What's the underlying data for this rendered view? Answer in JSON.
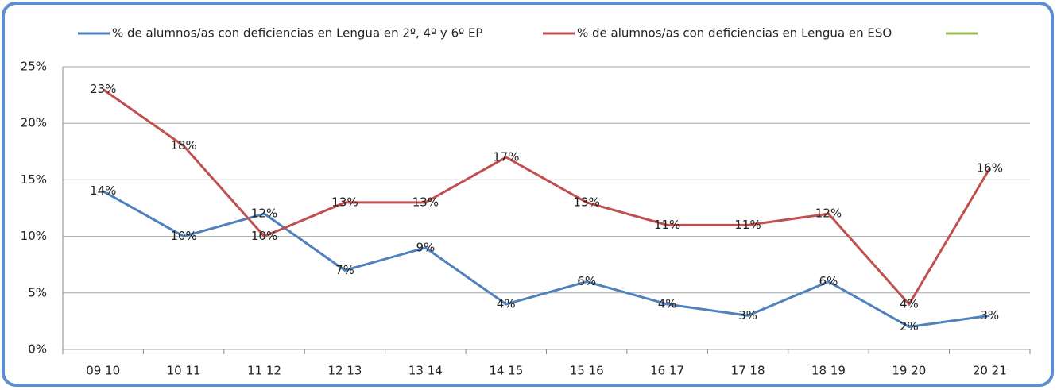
{
  "chart_data": {
    "type": "line",
    "categories": [
      "09 10",
      "10 11",
      "11 12",
      "12 13",
      "13 14",
      "14 15",
      "15 16",
      "16 17",
      "17 18",
      "18 19",
      "19 20",
      "20 21"
    ],
    "series": [
      {
        "name": "% de alumnos/as con deficiencias en Lengua  en 2º, 4º y 6º EP",
        "color": "#4f81bd",
        "values": [
          14,
          10,
          12,
          7,
          9,
          4,
          6,
          4,
          3,
          6,
          2,
          3
        ],
        "value_labels": [
          "14%",
          "10%",
          "12%",
          "7%",
          "9%",
          "4%",
          "6%",
          "4%",
          "3%",
          "6%",
          "2%",
          "3%"
        ]
      },
      {
        "name": "% de alumnos/as con deficiencias en Lengua  en  ESO",
        "color": "#c0504d",
        "values": [
          23,
          18,
          10,
          13,
          13,
          17,
          13,
          11,
          11,
          12,
          4,
          16
        ],
        "value_labels": [
          "23%",
          "18%",
          "10%",
          "13%",
          "13%",
          "17%",
          "13%",
          "11%",
          "11%",
          "12%",
          "4%",
          "16%"
        ]
      }
    ],
    "ylim": [
      0,
      25
    ],
    "yticks": [
      {
        "value": 0,
        "label": "0%"
      },
      {
        "value": 5,
        "label": "5%"
      },
      {
        "value": 10,
        "label": "10%"
      },
      {
        "value": 15,
        "label": "15%"
      },
      {
        "value": 20,
        "label": "20%"
      },
      {
        "value": 25,
        "label": "25%"
      }
    ],
    "grid": true
  }
}
